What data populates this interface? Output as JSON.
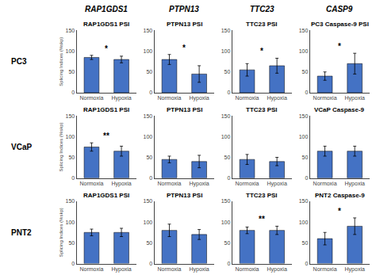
{
  "column_titles": [
    "RAP1GDS1",
    "PTPN13",
    "TTC23",
    "CASP9"
  ],
  "row_labels": [
    "PC3",
    "VCaP",
    "PNT2"
  ],
  "chart_data": [
    {
      "type": "bar",
      "title": "RAP1GDS1 PSI",
      "categories": [
        "Normoxia",
        "Hypoxia"
      ],
      "values": [
        85,
        80
      ],
      "errors": [
        5,
        8
      ],
      "color": "#4472C4",
      "ylim": [
        0,
        150
      ],
      "yticks": [
        0,
        50,
        100,
        150
      ],
      "grid": false,
      "ylabel": "Splicing Indices (%skp)",
      "annotations": [
        {
          "text": "*"
        }
      ]
    },
    {
      "type": "bar",
      "title": "PTPN13 PSI",
      "categories": [
        "Normoxia",
        "Hypoxia"
      ],
      "values": [
        80,
        45
      ],
      "errors": [
        12,
        20
      ],
      "color": "#4472C4",
      "ylim": [
        0,
        150
      ],
      "yticks": [
        0,
        50,
        100,
        150
      ],
      "grid": false,
      "annotations": [
        {
          "text": "*"
        }
      ]
    },
    {
      "type": "bar",
      "title": "TTC23 PSI",
      "categories": [
        "Normoxia",
        "Hypoxia"
      ],
      "values": [
        55,
        65
      ],
      "errors": [
        15,
        18
      ],
      "color": "#4472C4",
      "ylim": [
        0,
        150
      ],
      "yticks": [
        0,
        50,
        100,
        150
      ],
      "grid": false,
      "annotations": [
        {
          "text": "*"
        }
      ]
    },
    {
      "type": "bar",
      "title": "PC3 Caspase-9 PSI",
      "categories": [
        "Normoxia",
        "Hypoxia"
      ],
      "values": [
        40,
        70
      ],
      "errors": [
        10,
        25
      ],
      "color": "#4472C4",
      "ylim": [
        0,
        150
      ],
      "yticks": [
        0,
        50,
        100,
        150
      ],
      "grid": false,
      "annotations": [
        {
          "text": "*"
        }
      ]
    },
    {
      "type": "bar",
      "title": "RAP1GDS1 PSI",
      "categories": [
        "Normoxia",
        "Hypoxia"
      ],
      "values": [
        75,
        65
      ],
      "errors": [
        10,
        12
      ],
      "color": "#4472C4",
      "ylim": [
        0,
        150
      ],
      "yticks": [
        0,
        50,
        100,
        150
      ],
      "grid": false,
      "ylabel": "Splicing Indices (%skp)",
      "annotations": [
        {
          "text": "**"
        }
      ]
    },
    {
      "type": "bar",
      "title": "PTPN13 PSI",
      "categories": [
        "Normoxia",
        "Hypoxia"
      ],
      "values": [
        45,
        40
      ],
      "errors": [
        8,
        15
      ],
      "color": "#4472C4",
      "ylim": [
        0,
        150
      ],
      "yticks": [
        0,
        50,
        100,
        150
      ],
      "grid": false
    },
    {
      "type": "bar",
      "title": "TTC23 PSI",
      "categories": [
        "Normoxia",
        "Hypoxia"
      ],
      "values": [
        45,
        40
      ],
      "errors": [
        12,
        10
      ],
      "color": "#4472C4",
      "ylim": [
        0,
        150
      ],
      "yticks": [
        0,
        50,
        100,
        150
      ],
      "grid": false
    },
    {
      "type": "bar",
      "title": "VCaP Caspase-9",
      "categories": [
        "Normoxia",
        "Hypoxia"
      ],
      "values": [
        65,
        65
      ],
      "errors": [
        12,
        12
      ],
      "color": "#4472C4",
      "ylim": [
        0,
        150
      ],
      "yticks": [
        0,
        50,
        100,
        150
      ],
      "grid": false
    },
    {
      "type": "bar",
      "title": "RAP1GDS1 PSI",
      "categories": [
        "Normoxia",
        "Hypoxia"
      ],
      "values": [
        75,
        75
      ],
      "errors": [
        8,
        10
      ],
      "color": "#4472C4",
      "ylim": [
        0,
        150
      ],
      "yticks": [
        0,
        50,
        100,
        150
      ],
      "grid": false,
      "ylabel": "Splicing Indices (%skp)"
    },
    {
      "type": "bar",
      "title": "PTPN13 PSI",
      "categories": [
        "Normoxia",
        "Hypoxia"
      ],
      "values": [
        80,
        70
      ],
      "errors": [
        15,
        12
      ],
      "color": "#4472C4",
      "ylim": [
        0,
        150
      ],
      "yticks": [
        0,
        50,
        100,
        150
      ],
      "grid": false
    },
    {
      "type": "bar",
      "title": "TTC23 PSI",
      "categories": [
        "Normoxia",
        "Hypoxia"
      ],
      "values": [
        80,
        80
      ],
      "errors": [
        8,
        10
      ],
      "color": "#4472C4",
      "ylim": [
        0,
        150
      ],
      "yticks": [
        0,
        50,
        100,
        150
      ],
      "grid": false,
      "annotations": [
        {
          "text": "**"
        }
      ]
    },
    {
      "type": "bar",
      "title": "PNT2 Caspase-9",
      "categories": [
        "Normoxia",
        "Hypoxia"
      ],
      "values": [
        60,
        90
      ],
      "errors": [
        15,
        20
      ],
      "color": "#4472C4",
      "ylim": [
        0,
        150
      ],
      "yticks": [
        0,
        50,
        100,
        150
      ],
      "grid": false,
      "annotations": [
        {
          "text": "*"
        }
      ]
    }
  ]
}
